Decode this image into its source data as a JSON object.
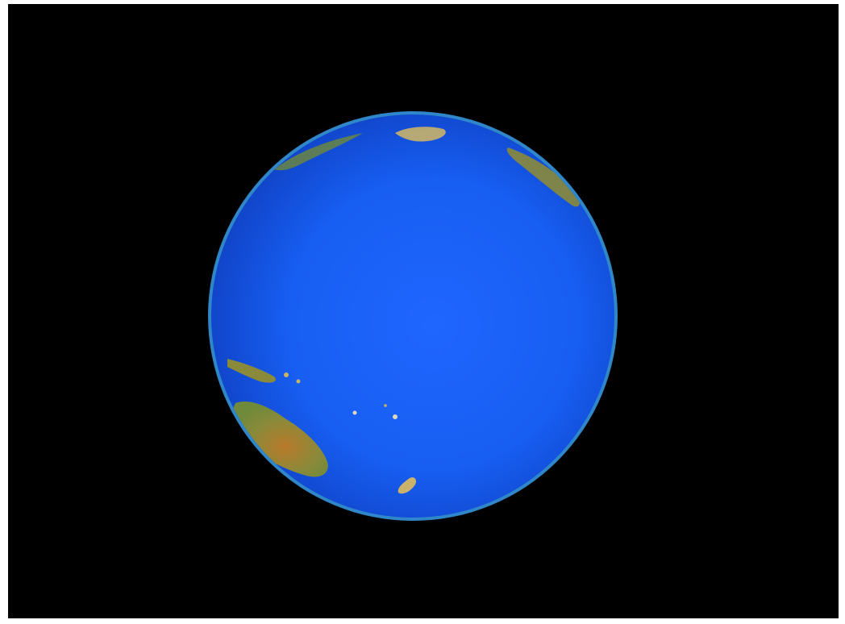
{
  "scene": {
    "subject": "earth-globe",
    "view": "pacific-ocean-hemisphere",
    "colors": {
      "frame": "#ffffff",
      "space": "#000000",
      "ocean_light": "#1f66ff",
      "ocean_mid": "#175ef2",
      "ocean_dark": "#0f3fc0",
      "limb": "#2f86c8",
      "land_green": "#6f8a3a",
      "land_olive": "#8a8a3a",
      "land_orange": "#b87a2a",
      "land_sand": "#c9b36a"
    },
    "landmasses": [
      "australia",
      "new-guinea",
      "new-zealand",
      "asia-coast",
      "north-america-coast",
      "pacific-islands"
    ]
  }
}
